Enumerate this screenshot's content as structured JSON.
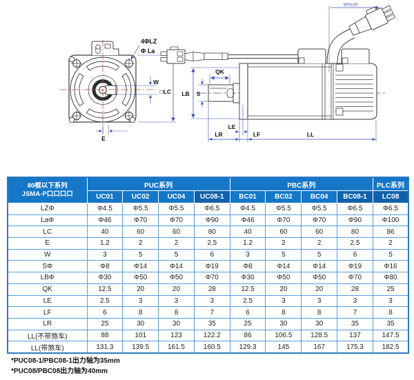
{
  "drawing": {
    "front": {
      "label_holes": "4ΦLZ",
      "label_la": "Φ La",
      "label_w": "W",
      "label_lc": "□LC",
      "label_e": "E"
    },
    "side": {
      "label_qk": "QK",
      "label_s": "S",
      "label_lb": "LB",
      "label_le": "LE",
      "label_lr": "LR",
      "label_lf": "LF",
      "label_ll": "LL",
      "label_cable_length": "300±30"
    }
  },
  "table": {
    "corner_line1": "80框以下系列",
    "corner_line2": "JSMA-P口口口口",
    "series_groups": [
      {
        "label": "PUC系列",
        "span": 4
      },
      {
        "label": "PBC系列",
        "span": 4
      },
      {
        "label": "PLC系列",
        "span": 1
      }
    ],
    "model_columns": [
      "UC01",
      "UC02",
      "UC04",
      "UC08-1",
      "BC01",
      "BC02",
      "BC04",
      "BC08-1",
      "LC08"
    ],
    "highlight_columns": [
      3,
      7,
      8
    ],
    "rows": [
      {
        "label": "LZΦ",
        "values": [
          "Φ4.5",
          "Φ5.5",
          "Φ5.5",
          "Φ6.5",
          "Φ4.5",
          "Φ5.5",
          "Φ5.5",
          "Φ6.5",
          "Φ6.5"
        ]
      },
      {
        "label": "LaΦ",
        "values": [
          "Φ46",
          "Φ70",
          "Φ70",
          "Φ90",
          "Φ46",
          "Φ70",
          "Φ70",
          "Φ90",
          "Φ100"
        ]
      },
      {
        "label": "LC",
        "values": [
          "40",
          "60",
          "60",
          "80",
          "40",
          "60",
          "60",
          "80",
          "86"
        ]
      },
      {
        "label": "E",
        "values": [
          "1.2",
          "2",
          "2",
          "2.5",
          "1.2",
          "2",
          "2",
          "2.5",
          "2"
        ]
      },
      {
        "label": "W",
        "values": [
          "3",
          "5",
          "5",
          "6",
          "3",
          "5",
          "5",
          "6",
          "5"
        ]
      },
      {
        "label": "SΦ",
        "values": [
          "Φ8",
          "Φ14",
          "Φ14",
          "Φ19",
          "Φ8",
          "Φ14",
          "Φ14",
          "Φ19",
          "Φ16"
        ]
      },
      {
        "label": "LBΦ",
        "values": [
          "Φ30",
          "Φ50",
          "Φ50",
          "Φ70",
          "Φ30",
          "Φ50",
          "Φ50",
          "Φ70",
          "Φ80"
        ]
      },
      {
        "label": "QK",
        "values": [
          "12.5",
          "20",
          "20",
          "28",
          "12.5",
          "20",
          "20",
          "28",
          "25"
        ]
      },
      {
        "label": "LE",
        "values": [
          "2.5",
          "3",
          "3",
          "3",
          "2.5",
          "3",
          "3",
          "3",
          "3"
        ]
      },
      {
        "label": "LF",
        "values": [
          "6",
          "8",
          "8",
          "7",
          "6",
          "8",
          "8",
          "7",
          "8"
        ]
      },
      {
        "label": "LR",
        "values": [
          "25",
          "30",
          "30",
          "35",
          "25",
          "30",
          "30",
          "35",
          "35"
        ]
      },
      {
        "label": "LL(不带煞车)",
        "values": [
          "88",
          "101",
          "123",
          "122.2",
          "86",
          "106.5",
          "128.5",
          "137",
          "147.5"
        ]
      },
      {
        "label": "LL(带煞车)",
        "values": [
          "131.3",
          "139.5",
          "161.5",
          "160.5",
          "129.3",
          "145",
          "167",
          "175.3",
          "182.5"
        ]
      }
    ]
  },
  "footnotes": [
    "*PUC08-1/PBC08-1出力轴为35mm",
    "*PUC08/PBC08出力轴为40mm"
  ],
  "colors": {
    "header_blue": "#1577c8",
    "header_blue_dark": "#0f62aa",
    "grid_blue": "#5b9bd5",
    "outer_border_blue": "#2e79c0",
    "dimension_blue": "#3f51b5",
    "centerline_red": "#c0504d",
    "outline_gray": "#3d3d3d"
  }
}
